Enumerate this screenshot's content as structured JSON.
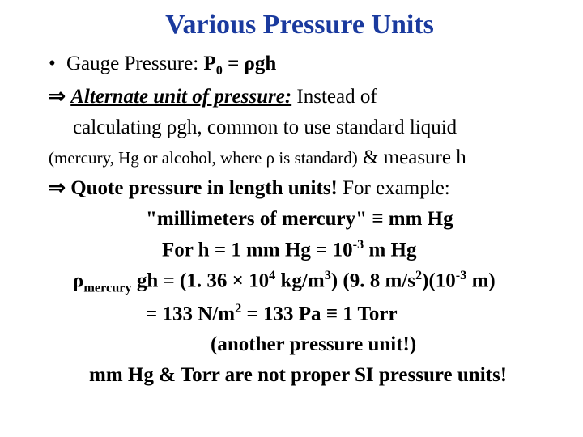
{
  "title_color": "#1a3a9e",
  "text_color": "#000000",
  "background_color": "#ffffff",
  "title": "Various Pressure Units",
  "bullet1_a": "Gauge Pressure: ",
  "bullet1_b": "P",
  "bullet1_sub": "0",
  "bullet1_c": " = ρgh",
  "arrow_sym": "⇒ ",
  "alt_unit": "Alternate unit of pressure:",
  "alt_rest": " Instead of",
  "alt_line2": "calculating ρgh, common to use standard liquid",
  "paren_small": "(mercury, Hg or alcohol, where ρ is standard)",
  "paren_rest": " & measure h",
  "quote_a": "Quote pressure in length units!",
  "quote_b": " For example:",
  "mmhg_a": "\"millimeters of mercury\" ",
  "equiv": "≡",
  "mmhg_b": " mm Hg",
  "for_line_a": "For   h = 1 mm Hg = 10",
  "for_line_sup": "-3",
  "for_line_b": " m Hg",
  "rho_a": "ρ",
  "rho_sub": "mercury",
  "rho_b": " gh = (1. 36 × 10",
  "rho_sup1": "4",
  "rho_c": " kg/m",
  "rho_sup2": "3",
  "rho_d": ") (9. 8 m/s",
  "rho_sup3": "2",
  "rho_e": ")(10",
  "rho_sup4": "-3",
  "rho_f": " m)",
  "eq_a": "= 133 N/m",
  "eq_sup": "2",
  "eq_b": " = 133 Pa ",
  "eq_c": " 1 Torr",
  "another": "(another pressure unit!)",
  "final": "mm Hg & Torr are not proper SI pressure units!"
}
